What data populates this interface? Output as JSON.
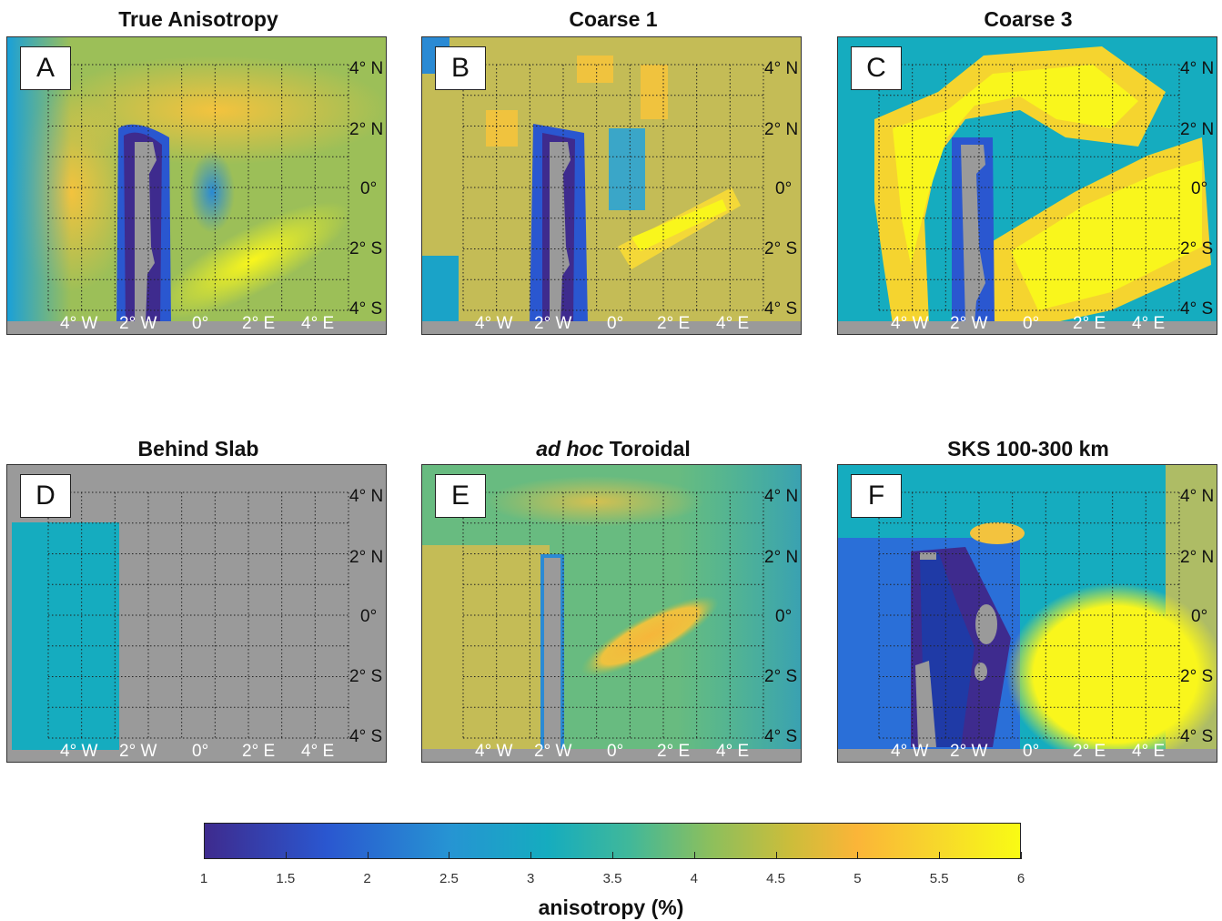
{
  "panels": [
    {
      "letter": "A",
      "title": "True Anisotropy",
      "title_italic": ""
    },
    {
      "letter": "B",
      "title": "Coarse 1",
      "title_italic": ""
    },
    {
      "letter": "C",
      "title": "Coarse 3",
      "title_italic": ""
    },
    {
      "letter": "D",
      "title": "Behind Slab",
      "title_italic": ""
    },
    {
      "letter": "E",
      "title": "Toroidal",
      "title_italic": "ad hoc"
    },
    {
      "letter": "F",
      "title": "SKS 100-300 km",
      "title_italic": ""
    }
  ],
  "lat_labels": [
    "4° N",
    "2° N",
    "0°",
    "2° S",
    "4° S"
  ],
  "lon_labels": [
    "4° W",
    "2° W",
    "0°",
    "2° E",
    "4° E"
  ],
  "colorbar": {
    "label": "anisotropy (%)",
    "ticks": [
      "1",
      "1.5",
      "2",
      "2.5",
      "3",
      "3.5",
      "4",
      "4.5",
      "5",
      "5.5",
      "6"
    ],
    "range": [
      1,
      6
    ]
  },
  "colors": {
    "low": "#3e2b8e",
    "blue": "#2a57d0",
    "teal": "#15acbf",
    "green": "#8cbf5d",
    "olive": "#c8bd55",
    "orange": "#fbb538",
    "yellow": "#f9fb14",
    "slab": "#9a9a9a"
  }
}
